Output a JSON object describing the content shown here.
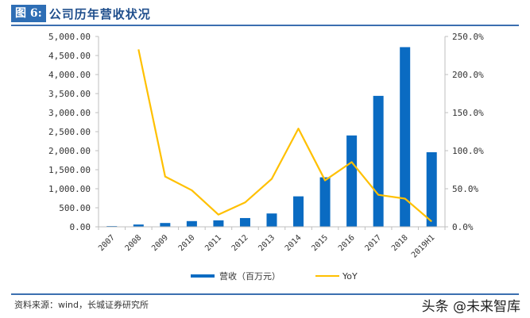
{
  "header": {
    "figure_label": "图 6:",
    "title": "公司历年营收状况"
  },
  "footer": {
    "source": "资料来源：wind，长城证券研究所",
    "watermark": "头条 @未来智库"
  },
  "legend": {
    "bar_label": "营收（百万元）",
    "line_label": "YoY"
  },
  "colors": {
    "bar": "#0a6bc2",
    "line": "#ffc000",
    "rule": "#3b6fb0",
    "axis": "#bfbfbf"
  },
  "chart_data": {
    "type": "bar",
    "title": "公司历年营收状况",
    "categories": [
      "2007",
      "2008",
      "2009",
      "2010",
      "2011",
      "2012",
      "2013",
      "2014",
      "2015",
      "2016",
      "2017",
      "2018",
      "2019H1"
    ],
    "series": [
      {
        "name": "营收（百万元）",
        "type": "bar",
        "axis": "left",
        "values": [
          20,
          60,
          100,
          150,
          170,
          230,
          350,
          800,
          1300,
          2400,
          3440,
          4720,
          1960
        ]
      },
      {
        "name": "YoY",
        "type": "line",
        "axis": "right",
        "unit": "%",
        "values": [
          null,
          233,
          66,
          48,
          16,
          32,
          63,
          129,
          61,
          85,
          42,
          37,
          7
        ]
      }
    ],
    "left_axis": {
      "ylim": [
        0,
        5000
      ],
      "ticks": [
        "0.00",
        "500.00",
        "1,000.00",
        "1,500.00",
        "2,000.00",
        "2,500.00",
        "3,000.00",
        "3,500.00",
        "4,000.00",
        "4,500.00",
        "5,000.00"
      ]
    },
    "right_axis": {
      "ylim": [
        0,
        250
      ],
      "ticks": [
        "0.0%",
        "50.0%",
        "100.0%",
        "150.0%",
        "200.0%",
        "250.0%"
      ]
    },
    "xlabel": "",
    "ylabel": "",
    "grid": false,
    "legend_position": "bottom"
  }
}
